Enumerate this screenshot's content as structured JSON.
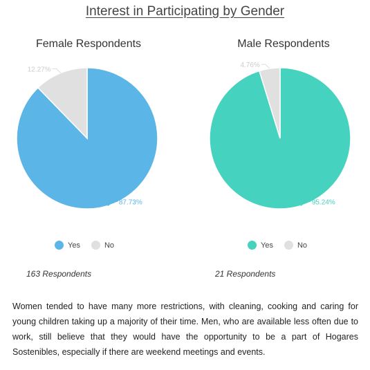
{
  "page_title": "Interest in Participating by Gender",
  "chart_data": [
    {
      "type": "pie",
      "title": "Female Respondents",
      "categories": [
        "Yes",
        "No"
      ],
      "values": [
        87.73,
        12.27
      ],
      "labels": [
        "87.73%",
        "12.27%"
      ],
      "colors": [
        "#5bb5e6",
        "#e0e0e0"
      ],
      "legend": "bottom",
      "footer": "163 Respondents"
    },
    {
      "type": "pie",
      "title": "Male Respondents",
      "categories": [
        "Yes",
        "No"
      ],
      "values": [
        95.24,
        4.76
      ],
      "labels": [
        "95.24%",
        "4.76%"
      ],
      "colors": [
        "#45d2bf",
        "#e0e0e0"
      ],
      "legend": "bottom",
      "footer": "21 Respondents"
    }
  ],
  "paragraph": "Women tended to have many more restrictions, with cleaning, cooking and caring for young children taking up a majority of their time. Men, who are available less often due to work, still believe that they would have the opportunity to be a part of  Hogares Sostenibles, especially if there are weekend meetings and events."
}
